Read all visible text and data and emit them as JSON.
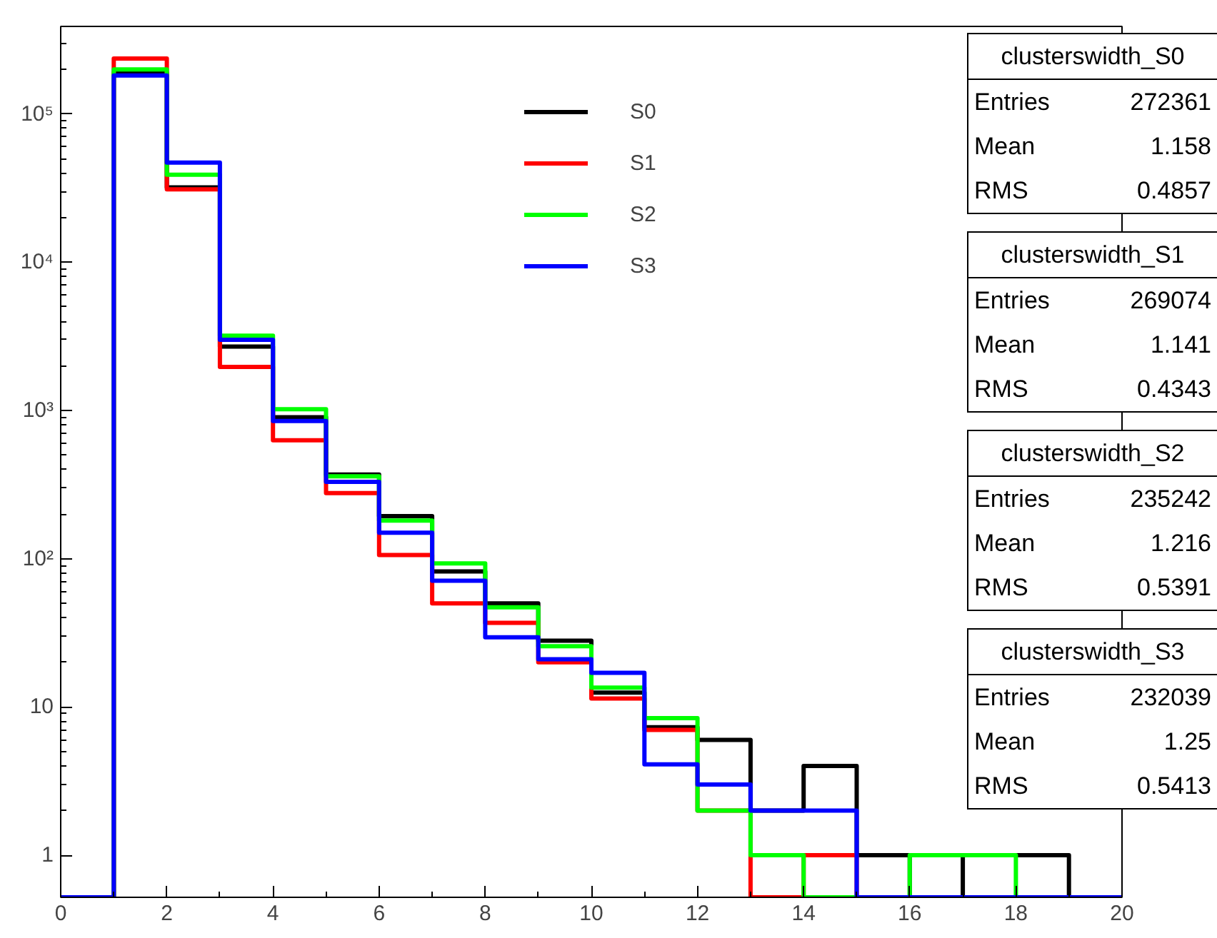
{
  "chart_data": {
    "type": "histogram",
    "bins": [
      0,
      1,
      2,
      3,
      4,
      5,
      6,
      7,
      8,
      9,
      10,
      11,
      12,
      13,
      14,
      15,
      16,
      17,
      18,
      19,
      20
    ],
    "series": [
      {
        "name": "S0",
        "color": "#000000",
        "values": [
          null,
          190000,
          32000,
          2700,
          900,
          370,
          194,
          82,
          50,
          28,
          12.5,
          7.3,
          6,
          2,
          4,
          1,
          null,
          1,
          1,
          null
        ]
      },
      {
        "name": "S1",
        "color": "#ff0000",
        "values": [
          null,
          237000,
          31000,
          1970,
          630,
          277,
          106,
          50,
          37,
          20,
          11.4,
          7,
          2,
          null,
          1,
          null,
          null,
          null,
          null,
          null
        ]
      },
      {
        "name": "S2",
        "color": "#00ff00",
        "values": [
          null,
          200000,
          39000,
          3200,
          1020,
          360,
          181,
          93,
          47,
          25.7,
          13.5,
          8.4,
          2,
          1,
          null,
          null,
          1,
          1,
          null,
          null
        ]
      },
      {
        "name": "S3",
        "color": "#0000ff",
        "values": [
          null,
          182000,
          47000,
          3000,
          850,
          330,
          150,
          71,
          29.5,
          21,
          17,
          4.1,
          3,
          2,
          2,
          null,
          null,
          null,
          null,
          null
        ]
      }
    ],
    "log": "y",
    "xlim": [
      0,
      20
    ],
    "ylim": [
      0.52,
      390000
    ],
    "xticks": [
      0,
      2,
      4,
      6,
      8,
      10,
      12,
      14,
      16,
      18,
      20
    ],
    "yticks": [
      1,
      10,
      {
        "value": 100,
        "label": "10²"
      },
      {
        "value": 1000,
        "label": "10³"
      },
      {
        "value": 10000,
        "label": "10⁴"
      },
      {
        "value": 100000,
        "label": "10⁵"
      }
    ],
    "grid": false,
    "legend": "top",
    "annotations": [
      "clusterswidth_S0",
      "Entries 272361",
      "Mean 1.158",
      "RMS 0.4857",
      "clusterswidth_S1",
      "Entries 269074",
      "Mean 1.141",
      "RMS 0.4343",
      "clusterswidth_S2",
      "Entries 235242",
      "Mean 1.216",
      "RMS 0.5391",
      "clusterswidth_S3",
      "Entries 232039",
      "Mean 1.25",
      "RMS 0.5413"
    ]
  }
}
